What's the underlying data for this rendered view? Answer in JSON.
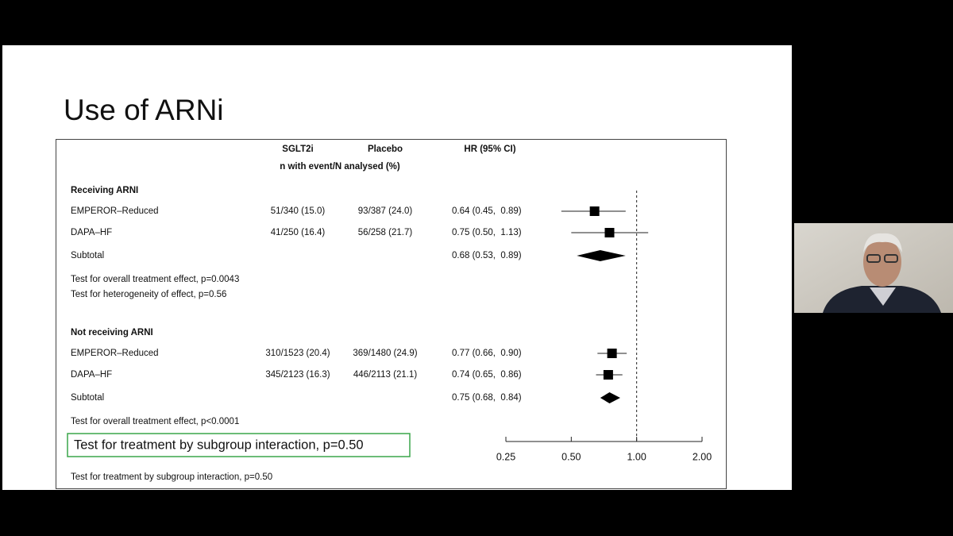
{
  "slide_title": "Use of ARNi",
  "chart_data": {
    "type": "forest",
    "columns": {
      "sglt2i": "SGLT2i",
      "placebo": "Placebo",
      "hr": "HR (95% CI)",
      "subheader": "n with event/N analysed (%)"
    },
    "groups": [
      {
        "name": "Receiving ARNI",
        "rows": [
          {
            "label": "EMPEROR–Reduced",
            "sglt2i": "51/340 (15.0)",
            "placebo": "93/387 (24.0)",
            "hr": 0.64,
            "ci": [
              0.45,
              0.89
            ],
            "hr_label": "0.64 (0.45,  0.89)"
          },
          {
            "label": "DAPA–HF",
            "sglt2i": "41/250 (16.4)",
            "placebo": "56/258 (21.7)",
            "hr": 0.75,
            "ci": [
              0.5,
              1.13
            ],
            "hr_label": "0.75 (0.50,  1.13)"
          }
        ],
        "subtotal": {
          "label": "Subtotal",
          "hr": 0.68,
          "ci": [
            0.53,
            0.89
          ],
          "hr_label": "0.68 (0.53,  0.89)"
        },
        "tests": [
          "Test for overall treatment effect, p=0.0043",
          "Test for heterogeneity of effect, p=0.56"
        ]
      },
      {
        "name": "Not receiving ARNI",
        "rows": [
          {
            "label": "EMPEROR–Reduced",
            "sglt2i": "310/1523 (20.4)",
            "placebo": "369/1480 (24.9)",
            "hr": 0.77,
            "ci": [
              0.66,
              0.9
            ],
            "hr_label": "0.77 (0.66,  0.90)"
          },
          {
            "label": "DAPA–HF",
            "sglt2i": "345/2123 (16.3)",
            "placebo": "446/2113 (21.1)",
            "hr": 0.74,
            "ci": [
              0.65,
              0.86
            ],
            "hr_label": "0.74 (0.65,  0.86)"
          }
        ],
        "subtotal": {
          "label": "Subtotal",
          "hr": 0.75,
          "ci": [
            0.68,
            0.84
          ],
          "hr_label": "0.75 (0.68,  0.84)"
        },
        "tests": [
          "Test for overall treatment effect, p<0.0001"
        ]
      }
    ],
    "xlim": [
      0.25,
      2
    ],
    "xticks": [
      0.25,
      {
        "value": 0.5,
        "label": "0.50"
      },
      {
        "value": 1,
        "label": "1.00"
      },
      {
        "value": 2,
        "label": "2.00"
      }
    ],
    "log_scale": true,
    "reference_line": 1,
    "highlight": "Test for treatment by subgroup interaction, p=0.50",
    "footer": "Test for treatment by subgroup interaction, p=0.50"
  }
}
